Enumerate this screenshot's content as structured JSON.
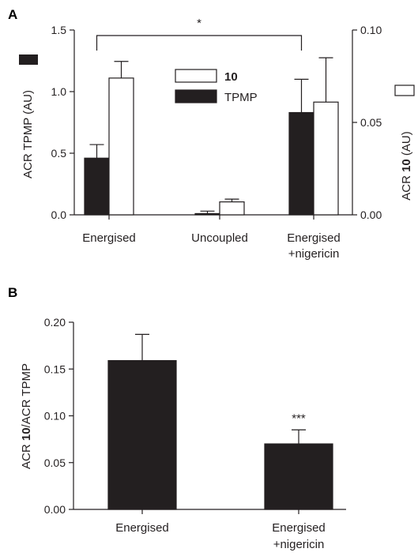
{
  "chart_data": [
    {
      "panel": "A",
      "type": "bar",
      "categories": [
        "Energised",
        "Uncoupled",
        "Energised +nigericin"
      ],
      "category_lines": [
        [
          "Energised"
        ],
        [
          "Uncoupled"
        ],
        [
          "Energised",
          "+nigericin"
        ]
      ],
      "left_axis": {
        "label": "ACR TPMP (AU)",
        "ylim": [
          0,
          1.5
        ],
        "ticks": [
          0.0,
          0.5,
          1.0,
          1.5
        ],
        "tick_labels": [
          "0.0",
          "0.5",
          "1.0",
          "1.5"
        ]
      },
      "right_axis": {
        "label_prefix": "ACR ",
        "label_bold": "10",
        "label_suffix": " (AU)",
        "ylim": [
          0,
          0.1
        ],
        "ticks": [
          0.0,
          0.05,
          0.1
        ],
        "tick_labels": [
          "0.00",
          "0.05",
          "0.10"
        ]
      },
      "series": [
        {
          "name": "TPMP",
          "color": "#231f20",
          "axis": "left",
          "values": [
            0.46,
            0.01,
            0.83
          ],
          "errors": [
            0.11,
            0.02,
            0.27
          ]
        },
        {
          "name": "10",
          "name_bold": true,
          "color": "#ffffff",
          "axis": "right",
          "values": [
            0.074,
            0.007,
            0.061
          ],
          "errors": [
            0.009,
            0.0015,
            0.024
          ]
        }
      ],
      "legend": {
        "placement": "top-center",
        "entries": [
          "10",
          "TPMP"
        ]
      },
      "significance": {
        "from": "Energised",
        "to": "Energised +nigericin",
        "label": "*"
      },
      "grid": false
    },
    {
      "panel": "B",
      "type": "bar",
      "categories": [
        "Energised",
        "Energised +nigericin"
      ],
      "category_lines": [
        [
          "Energised"
        ],
        [
          "Energised",
          "+nigericin"
        ]
      ],
      "y_axis": {
        "label_prefix": "ACR ",
        "label_bold": "10",
        "label_suffix": "/ACR TPMP",
        "ylim": [
          0,
          0.2
        ],
        "ticks": [
          0.0,
          0.05,
          0.1,
          0.15,
          0.2
        ],
        "tick_labels": [
          "0.00",
          "0.05",
          "0.10",
          "0.15",
          "0.20"
        ]
      },
      "series": [
        {
          "color": "#231f20",
          "values": [
            0.159,
            0.07
          ],
          "errors": [
            0.028,
            0.015
          ]
        }
      ],
      "annotations": [
        {
          "category": "Energised +nigericin",
          "text": "***"
        }
      ],
      "grid": false
    }
  ]
}
